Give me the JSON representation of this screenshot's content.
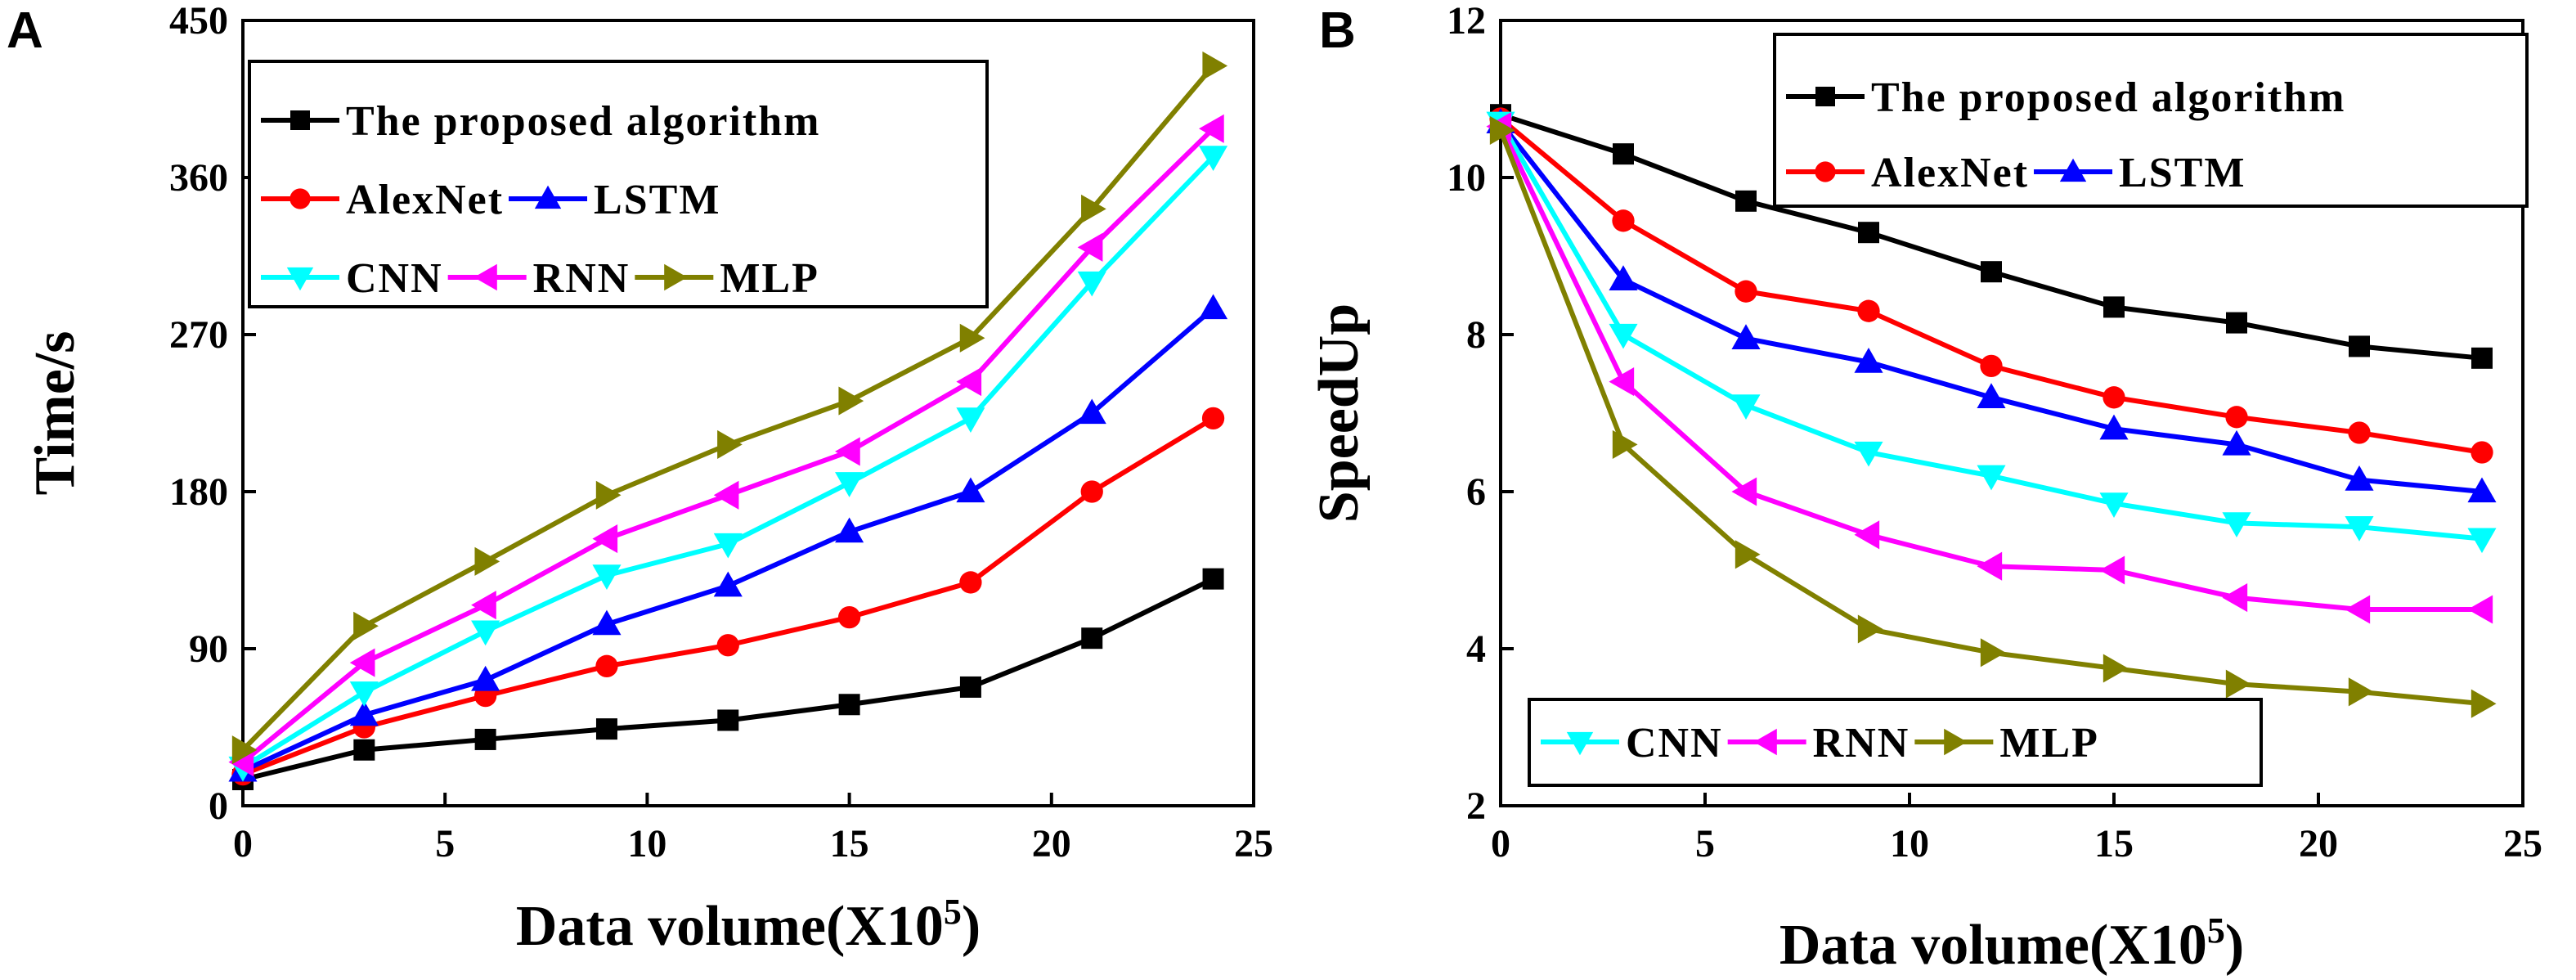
{
  "chart_data": [
    {
      "panel": "A",
      "type": "line",
      "xlabel": "Data volume(X10",
      "xlabel_exp": "5",
      "xlabel_close": ")",
      "ylabel": "Time/s",
      "xlim": [
        0,
        25
      ],
      "ylim": [
        0,
        450
      ],
      "xticks": [
        0,
        5,
        10,
        15,
        20,
        25
      ],
      "yticks": [
        0,
        90,
        180,
        270,
        360,
        450
      ],
      "x": [
        0,
        3,
        6,
        9,
        12,
        15,
        18,
        21,
        24
      ],
      "legend_location": "top-left",
      "legend_rows": [
        [
          "The proposed algorithm"
        ],
        [
          "AlexNet",
          "LSTM"
        ],
        [
          "CNN",
          "RNN",
          "MLP"
        ]
      ],
      "series": [
        {
          "name": "The proposed algorithm",
          "color": "#000000",
          "marker": "square",
          "values": [
            15,
            32,
            38,
            44,
            49,
            58,
            68,
            96,
            130
          ]
        },
        {
          "name": "AlexNet",
          "color": "#ff0000",
          "marker": "circle",
          "values": [
            18,
            45,
            63,
            80,
            92,
            108,
            128,
            180,
            222
          ]
        },
        {
          "name": "LSTM",
          "color": "#0000ff",
          "marker": "triangle-up",
          "values": [
            20,
            52,
            72,
            104,
            126,
            157,
            180,
            225,
            285
          ]
        },
        {
          "name": "CNN",
          "color": "#00ffff",
          "marker": "triangle-down",
          "values": [
            22,
            65,
            100,
            132,
            150,
            185,
            222,
            300,
            372
          ]
        },
        {
          "name": "RNN",
          "color": "#ff00ff",
          "marker": "triangle-left",
          "values": [
            25,
            82,
            115,
            153,
            178,
            203,
            243,
            320,
            388
          ]
        },
        {
          "name": "MLP",
          "color": "#808000",
          "marker": "triangle-right",
          "values": [
            32,
            103,
            140,
            178,
            207,
            232,
            268,
            342,
            424
          ]
        }
      ]
    },
    {
      "panel": "B",
      "type": "line",
      "xlabel": "Data volume(X10",
      "xlabel_exp": "5",
      "xlabel_close": ")",
      "ylabel": "SpeedUp",
      "xlim": [
        0,
        25
      ],
      "ylim": [
        2,
        12
      ],
      "xticks": [
        0,
        5,
        10,
        15,
        20,
        25
      ],
      "yticks": [
        2,
        4,
        6,
        8,
        10,
        12
      ],
      "x": [
        0,
        3,
        6,
        9,
        12,
        15,
        18,
        21,
        24
      ],
      "legend_location": "top-right and bottom-left",
      "legend_top_rows": [
        [
          "The proposed algorithm"
        ],
        [
          "AlexNet",
          "LSTM"
        ]
      ],
      "legend_bottom_rows": [
        [
          "CNN",
          "RNN",
          "MLP"
        ]
      ],
      "series": [
        {
          "name": "The proposed algorithm",
          "color": "#000000",
          "marker": "square",
          "values": [
            10.8,
            10.3,
            9.7,
            9.3,
            8.8,
            8.35,
            8.15,
            7.85,
            7.7
          ]
        },
        {
          "name": "AlexNet",
          "color": "#ff0000",
          "marker": "circle",
          "values": [
            10.75,
            9.45,
            8.55,
            8.3,
            7.6,
            7.2,
            6.95,
            6.75,
            6.5
          ]
        },
        {
          "name": "LSTM",
          "color": "#0000ff",
          "marker": "triangle-up",
          "values": [
            10.7,
            8.7,
            7.95,
            7.65,
            7.2,
            6.8,
            6.6,
            6.15,
            6.0
          ]
        },
        {
          "name": "CNN",
          "color": "#00ffff",
          "marker": "triangle-down",
          "values": [
            10.7,
            8.0,
            7.1,
            6.5,
            6.2,
            5.85,
            5.6,
            5.55,
            5.4
          ]
        },
        {
          "name": "RNN",
          "color": "#ff00ff",
          "marker": "triangle-left",
          "values": [
            10.65,
            7.4,
            6.0,
            5.45,
            5.05,
            5.0,
            4.65,
            4.5,
            4.5
          ]
        },
        {
          "name": "MLP",
          "color": "#808000",
          "marker": "triangle-right",
          "values": [
            10.6,
            6.6,
            5.2,
            4.25,
            3.95,
            3.75,
            3.55,
            3.45,
            3.3
          ]
        }
      ]
    }
  ]
}
